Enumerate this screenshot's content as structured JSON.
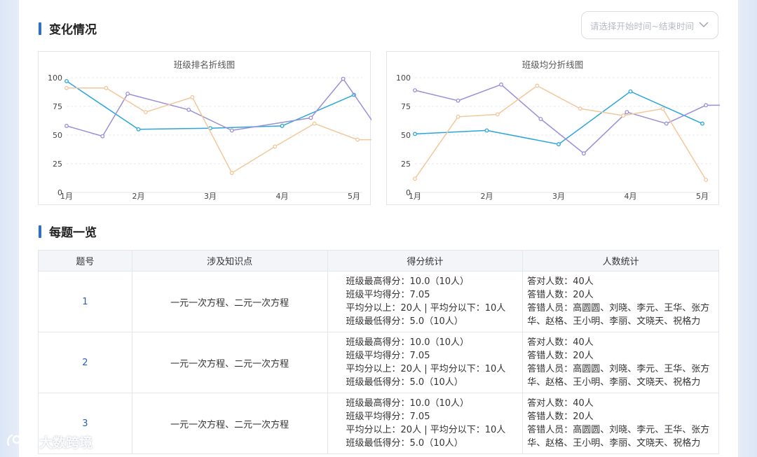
{
  "sections": {
    "changes_title": "变化情况",
    "questions_title": "每题一览"
  },
  "date_picker": {
    "placeholder": "请选择开始时间~结束时间",
    "icon": "chevron-down-icon"
  },
  "chart_data": [
    {
      "type": "line",
      "title": "班级排名折线图",
      "categories": [
        "1月",
        "2月",
        "3月",
        "4月",
        "5月"
      ],
      "yticks": [
        0,
        25,
        50,
        75,
        100
      ],
      "ylim": [
        0,
        100
      ],
      "grid": true,
      "series": [
        {
          "color": "#2aa6d8",
          "x": [
            0,
            1,
            2,
            3,
            4
          ],
          "values": [
            97,
            55,
            56,
            58,
            85
          ]
        },
        {
          "color": "#9b8fd8",
          "x": [
            0,
            0.5,
            0.85,
            1.7,
            2.3,
            3.4,
            3.85,
            4.5,
            5
          ],
          "values": [
            58,
            49,
            86,
            72,
            54,
            65,
            99,
            40,
            40
          ]
        },
        {
          "color": "#f2c79b",
          "x": [
            0,
            0.55,
            1.1,
            1.75,
            2.3,
            2.9,
            3.45,
            4.05,
            4.55
          ],
          "values": [
            91,
            91,
            70,
            83,
            17,
            40,
            60,
            46,
            46
          ]
        }
      ]
    },
    {
      "type": "line",
      "title": "班级均分折线图",
      "categories": [
        "1月",
        "2月",
        "3月",
        "4月",
        "5月"
      ],
      "yticks": [
        0,
        25,
        50,
        75,
        100
      ],
      "ylim": [
        0,
        100
      ],
      "grid": true,
      "series": [
        {
          "color": "#2aa6d8",
          "x": [
            0,
            1,
            2,
            3,
            4
          ],
          "values": [
            51,
            54,
            42,
            88,
            60
          ]
        },
        {
          "color": "#9b8fd8",
          "x": [
            0,
            0.6,
            1.2,
            1.75,
            2.35,
            2.95,
            3.5,
            4.05,
            4.55
          ],
          "values": [
            89,
            80,
            94,
            64,
            34,
            70,
            60,
            76,
            76
          ]
        },
        {
          "color": "#f2c79b",
          "x": [
            0,
            0.6,
            1.15,
            1.7,
            2.3,
            2.9,
            3.45,
            4.05
          ],
          "values": [
            12,
            66,
            68,
            93,
            73,
            67,
            73,
            11
          ]
        }
      ]
    }
  ],
  "table": {
    "headers": [
      "题号",
      "涉及知识点",
      "得分统计",
      "人数统计"
    ],
    "rows": [
      {
        "num": "1",
        "knowledge": "一元一次方程、二元一次方程",
        "score": [
          "班级最高得分：10.0（10人）",
          "班级平均得分：7.05",
          "平均分以上：20人 | 平均分以下：10人",
          "班级最低得分：5.0（10人）"
        ],
        "people": [
          "答对人数：40人",
          "答错人数：20人",
          "答错人员：高圆圆、刘晓、李元、王华、张方",
          "华、赵格、王小明、李丽、文晓天、祝格力"
        ]
      },
      {
        "num": "2",
        "knowledge": "一元一次方程、二元一次方程",
        "score": [
          "班级最高得分：10.0（10人）",
          "班级平均得分：7.05",
          "平均分以上：20人 | 平均分以下：10人",
          "班级最低得分：5.0（10人）"
        ],
        "people": [
          "答对人数：40人",
          "答错人数：20人",
          "答错人员：高圆圆、刘晓、李元、王华、张方",
          "华、赵格、王小明、李丽、文晓天、祝格力"
        ]
      },
      {
        "num": "3",
        "knowledge": "一元一次方程、二元一次方程",
        "score": [
          "班级最高得分：10.0（10人）",
          "班级平均得分：7.05",
          "平均分以上：20人 | 平均分以下：10人",
          "班级最低得分：5.0（10人）"
        ],
        "people": [
          "答对人数：40人",
          "答错人数：20人",
          "答错人员：高圆圆、刘晓、李元、王华、张方",
          "华、赵格、王小明、李丽、文晓天、祝格力"
        ]
      }
    ]
  },
  "watermark": {
    "text": "大数跨境",
    "icon": "brand-logo-icon"
  }
}
